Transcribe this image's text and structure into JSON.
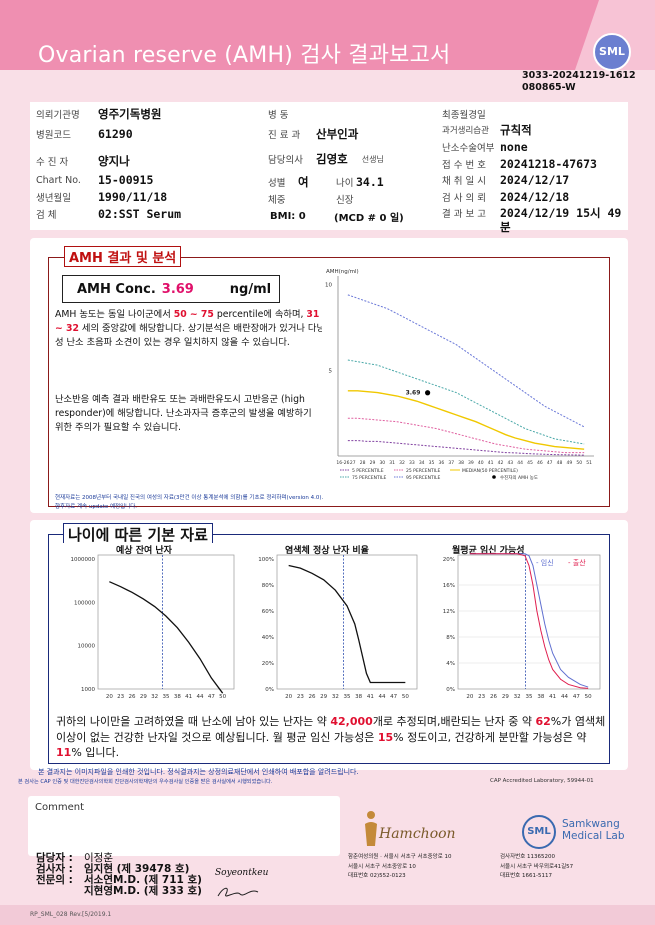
{
  "header": {
    "title": "Ovarian reserve (AMH) 검사 결과보고서",
    "logo_text": "SML",
    "doc_id_line1": "3033-20241219-1612",
    "doc_id_line2": "080865-W"
  },
  "patient": {
    "institution_label": "의뢰기관명",
    "institution": "영주기독병원",
    "hospital_code_label": "병원코드",
    "hospital_code": "61290",
    "patient_label": "수 진 자",
    "patient_name": "양지나",
    "chart_no_label": "Chart No.",
    "chart_no": "15-00915",
    "birth_label": "생년월일",
    "birth": "1990/11/18",
    "specimen_label": "검 체",
    "specimen": "02:SST Serum",
    "ward_label": "병 동",
    "ward": "",
    "dept_label": "진 료 과",
    "dept": "산부인과",
    "doctor_label": "담당의사",
    "doctor": "김영호",
    "doctor_suffix": "선생님",
    "sex_label": "성별",
    "sex": "여",
    "age_label": "나이",
    "age": "34.1",
    "weight_label": "체중",
    "height_label": "신장",
    "bmi": "BMI: 0",
    "mcd": "(MCD # 0 일)",
    "lmp_label": "최종월경일",
    "lmp": "",
    "menses_label": "과거생리습관",
    "menses": "규칙적",
    "ovulation_label": "난소수술여부",
    "ovulation": "none",
    "receipt_label": "접 수 번 호",
    "receipt": "20241218-47673",
    "collect_label": "채 취 일 시",
    "collect": "2024/12/17",
    "test_label": "검 사 의 뢰",
    "test": "2024/12/18",
    "report_label": "결 과 보 고",
    "report": "2024/12/19 15시 49 분"
  },
  "amh_section": {
    "title": "AMH 결과 및 분석",
    "conc_label": "AMH Conc.",
    "conc_value": "3.69",
    "conc_unit": "ng/ml",
    "para1_a": "AMH 농도는 동일 나이군에서 ",
    "para1_pct": "50 ~ 75",
    "para1_b": " percentile에 속하며, ",
    "para1_age": "31 ~ 32",
    "para1_c": " 세의 중앙값에 해당합니다. 상기분석은 배란장애가 있거나 다낭성 난소 초음파 소견이 있는 경우 일치하지 않을 수 있습니다.",
    "para2": "난소반응 예측 결과 배란유도 또는 과배란유도시 고반응군 (high responder)에 해당합니다. 난소과자극 증후군의 발생을 예방하기 위한 주의가 필요할 수 있습니다.",
    "footnote1": "현재자료는 2008년부터 국내일 진국의 여성의 자료(3만건 이상 통계분석에 의함)를 기초로 정리하며(version 4.0).",
    "footnote2": "향후자료 계속 update 예정입니다."
  },
  "basics_section": {
    "title": "나이에 따른 기본 자료",
    "chart1_title": "예상 잔여 난자",
    "chart2_title": "염색체 정상 난자 비율",
    "chart3_title": "월평균 임신 가능성",
    "chart3_legend_a": "- 임신",
    "chart3_legend_b": "- 출산",
    "summary_a": "귀하의 나이만을 고려하였을 때 난소에 남아 있는 난자는 약 ",
    "summary_eggs": "42,000",
    "summary_b": "개로 추정되며,배란되는 난자 중 약 ",
    "summary_pct": "62",
    "summary_c": "%가 염색체 이상이 없는 건강한 난자일 것으로 예상됩니다. 월 평균 임신 가능성은 ",
    "summary_preg": "15",
    "summary_d": "% 정도이고, 건강하게 분만할 가능성은 약 ",
    "summary_birth": "11",
    "summary_e": "% 입니다."
  },
  "notes": {
    "note1": "본 결과지는 이미지파일을 인쇄한 것입니다. 정식결과지는 상정의료재단에서 인쇄하여 배포합을 알려드립니다.",
    "note2": "본 검사는 CAP 인증 및 대한진단검사의학회 진단검사의학재단의 우수검사실 인증을 받은 검사실에서 시행되었습니다.",
    "cap": "CAP Accredited Laboratory, 59944-01"
  },
  "comment_label": "Comment",
  "signers": {
    "charge_label": "담당자 :",
    "charge": "이정훈",
    "tester_label": "검사자 :",
    "tester": "임지현 (제 39478 호)",
    "specialist_label": "전문의 :",
    "specialist1": "서소연M.D. (제 711 호)",
    "specialist2": "지현영M.D. (제 333 호)"
  },
  "hamchoon": {
    "logo": "Hamchoon",
    "line1": "함춘여성의원 · 서울시 서초구 서초중앙로 10",
    "line2": "서울시 서초구 서초중앙로 10",
    "line3": "대표번호 02)552-0123"
  },
  "samkwang": {
    "logo": "SML",
    "name1": "Samkwang",
    "name2": "Medical Lab",
    "line1": "검사자번호 11365200",
    "line2": "서울시 서초구 바우뫼로41길57",
    "line3": "대표번호 1661-5117"
  },
  "footer": "RP_SML_028 Rev.[5/2019.1",
  "signature_text": "Soyeontkeu",
  "chart_data": [
    {
      "type": "line",
      "title": "",
      "ylabel": "AMH(ng/ml)",
      "x": [
        26,
        27,
        28,
        29,
        30,
        31,
        32,
        33,
        34,
        35,
        36,
        37,
        38,
        39,
        40,
        41,
        42,
        43,
        44,
        45,
        46,
        47,
        48,
        49,
        50
      ],
      "ylim": [
        0,
        10.5
      ],
      "yticks": [
        5,
        10
      ],
      "series": [
        {
          "name": "95 PERCENTILE",
          "color": "#6a78d8",
          "values": [
            9.4,
            9.2,
            9.0,
            8.8,
            8.6,
            8.3,
            8.0,
            7.7,
            7.4,
            7.1,
            6.8,
            6.5,
            6.1,
            5.7,
            5.3,
            4.9,
            4.5,
            4.1,
            3.7,
            3.3,
            2.9,
            2.6,
            2.3,
            2.0,
            1.7
          ]
        },
        {
          "name": "75 PERCENTILE",
          "color": "#4aa8a8",
          "values": [
            5.6,
            5.5,
            5.4,
            5.3,
            5.1,
            4.9,
            4.7,
            4.5,
            4.3,
            4.1,
            3.9,
            3.7,
            3.4,
            3.1,
            2.8,
            2.5,
            2.2,
            1.9,
            1.6,
            1.4,
            1.2,
            1.0,
            0.9,
            0.8,
            0.7
          ]
        },
        {
          "name": "MEDIAN(50 PERCENTILE)",
          "color": "#f0c800",
          "values": [
            3.8,
            3.8,
            3.75,
            3.7,
            3.6,
            3.5,
            3.35,
            3.2,
            3.0,
            2.8,
            2.6,
            2.4,
            2.2,
            2.0,
            1.75,
            1.5,
            1.25,
            1.05,
            0.9,
            0.75,
            0.65,
            0.55,
            0.5,
            0.45,
            0.4
          ]
        },
        {
          "name": "25 PERCENTILE",
          "color": "#e060a0",
          "values": [
            2.2,
            2.2,
            2.15,
            2.1,
            2.05,
            2.0,
            1.9,
            1.8,
            1.7,
            1.6,
            1.45,
            1.3,
            1.15,
            1.0,
            0.85,
            0.7,
            0.6,
            0.5,
            0.4,
            0.35,
            0.3,
            0.25,
            0.2,
            0.2,
            0.2
          ]
        },
        {
          "name": "5 PERCENTILE",
          "color": "#8040a0",
          "values": [
            0.9,
            0.9,
            0.85,
            0.85,
            0.8,
            0.75,
            0.7,
            0.65,
            0.6,
            0.55,
            0.5,
            0.45,
            0.4,
            0.35,
            0.3,
            0.25,
            0.2,
            0.18,
            0.15,
            0.12,
            0.1,
            0.08,
            0.07,
            0.06,
            0.05
          ]
        }
      ],
      "patient_point": {
        "x": 34.1,
        "y": 3.69,
        "label": "3.69",
        "legend": "수진자의 AMH 농도"
      },
      "xlabels": [
        "16-26",
        "27",
        "28",
        "29",
        "30",
        "31",
        "32",
        "33",
        "34",
        "35",
        "36",
        "37",
        "38",
        "39",
        "40",
        "41",
        "42",
        "43",
        "44",
        "45",
        "46",
        "47",
        "48",
        "49",
        "50",
        "51"
      ]
    },
    {
      "type": "line",
      "title": "예상 잔여 난자",
      "scale": "log",
      "yticks": [
        "1000000",
        "100000",
        "10000",
        "1000"
      ],
      "xticks": [
        "20",
        "23",
        "26",
        "29",
        "32",
        "35",
        "38",
        "41",
        "44",
        "47",
        "50"
      ],
      "x": [
        20,
        23,
        26,
        29,
        32,
        35,
        38,
        41,
        44,
        47,
        50
      ],
      "values": [
        300000,
        230000,
        170000,
        120000,
        80000,
        48000,
        26000,
        12000,
        5000,
        1800,
        800
      ],
      "marker_x": 34.1
    },
    {
      "type": "line",
      "title": "염색체 정상 난자 비율",
      "yticks": [
        "100%",
        "80%",
        "60%",
        "40%",
        "20%",
        "0%"
      ],
      "xticks": [
        "20",
        "23",
        "26",
        "29",
        "32",
        "35",
        "38",
        "41",
        "44",
        "47",
        "50"
      ],
      "x": [
        20,
        23,
        26,
        29,
        32,
        35,
        37,
        38,
        39,
        40,
        41,
        42,
        44,
        47,
        50
      ],
      "values": [
        95,
        93,
        89,
        84,
        76,
        64,
        50,
        38,
        25,
        12,
        5,
        5,
        5,
        5,
        5
      ],
      "marker_x": 34.1
    },
    {
      "type": "line",
      "title": "월평균 임신 가능성",
      "yticks": [
        "20%",
        "16%",
        "12%",
        "8%",
        "4%",
        "0%"
      ],
      "xticks": [
        "20",
        "23",
        "26",
        "29",
        "32",
        "35",
        "38",
        "41",
        "44",
        "47",
        "50"
      ],
      "x": [
        20,
        23,
        26,
        29,
        32,
        34,
        35,
        36,
        37,
        38,
        39,
        40,
        41,
        43,
        45,
        48,
        50
      ],
      "series": [
        {
          "name": "임신",
          "color": "#6070d0",
          "values": [
            20.8,
            20.8,
            20.8,
            20.8,
            20.8,
            20.8,
            20.5,
            19,
            16,
            13,
            10,
            7.5,
            5.5,
            3,
            1.8,
            0.7,
            0.3
          ]
        },
        {
          "name": "출산",
          "color": "#e02050",
          "values": [
            20.8,
            20.8,
            20.8,
            20.8,
            20.8,
            20.5,
            19,
            16,
            12,
            9,
            6.5,
            4.5,
            3,
            1.5,
            0.7,
            0.2,
            0.1
          ]
        }
      ],
      "marker_x": 34.1
    }
  ]
}
